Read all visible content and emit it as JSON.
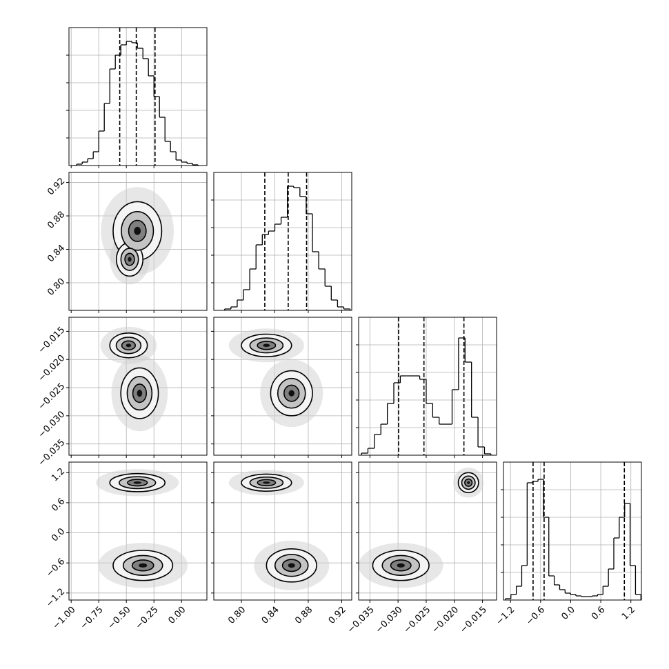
{
  "chart_data": {
    "type": "corner",
    "grid": true,
    "parameters": [
      {
        "xlim": [
          -1.02,
          0.23
        ],
        "xticks": [
          {
            "value": -1,
            "label": "−1.00"
          },
          {
            "value": -0.75,
            "label": "−0.75"
          },
          {
            "value": -0.5,
            "label": "−0.50"
          },
          {
            "value": -0.25,
            "label": "−0.25"
          },
          {
            "value": 0,
            "label": "0.00"
          }
        ],
        "hist": {
          "bins": [
            -1.0,
            -0.95,
            -0.9,
            -0.85,
            -0.8,
            -0.75,
            -0.7,
            -0.65,
            -0.6,
            -0.55,
            -0.5,
            -0.45,
            -0.4,
            -0.35,
            -0.3,
            -0.25,
            -0.2,
            -0.15,
            -0.1,
            -0.05,
            0.0,
            0.05,
            0.1,
            0.15
          ],
          "counts": [
            0,
            10,
            25,
            50,
            100,
            250,
            450,
            700,
            800,
            875,
            900,
            890,
            850,
            775,
            650,
            500,
            350,
            175,
            100,
            40,
            25,
            15,
            5
          ],
          "ylim": [
            0,
            1000
          ],
          "yticks": [
            200,
            400,
            600,
            800
          ]
        },
        "quantiles": [
          -0.56,
          -0.41,
          -0.24
        ]
      },
      {
        "xlim": [
          0.767,
          0.932
        ],
        "xticks": [
          {
            "value": 0.8,
            "label": "0.80"
          },
          0.84,
          0.88,
          0.92
        ],
        "hist": {
          "bins": [
            0.78,
            0.7875,
            0.795,
            0.8025,
            0.81,
            0.8175,
            0.825,
            0.8325,
            0.84,
            0.8475,
            0.855,
            0.8625,
            0.87,
            0.8775,
            0.885,
            0.8925,
            0.9,
            0.9075,
            0.915,
            0.9225,
            0.93
          ],
          "counts": [
            10,
            25,
            75,
            150,
            300,
            475,
            550,
            575,
            625,
            675,
            900,
            890,
            825,
            700,
            425,
            300,
            175,
            75,
            25,
            10
          ],
          "ylim": [
            0,
            1000
          ],
          "yticks": [
            200,
            400,
            600,
            800
          ]
        },
        "quantiles": [
          0.828,
          0.856,
          0.878
        ]
      },
      {
        "xlim": [
          -0.037,
          -0.0125
        ],
        "xticks": [
          {
            "value": -0.035,
            "label": "−0.035"
          },
          {
            "value": -0.03,
            "label": "−0.030"
          },
          {
            "value": -0.025,
            "label": "−0.025"
          },
          {
            "value": -0.02,
            "label": "−0.020"
          },
          {
            "value": -0.015,
            "label": "−0.015"
          }
        ],
        "hist": {
          "bins": [
            -0.0365,
            -0.03535,
            -0.0342,
            -0.03305,
            -0.0319,
            -0.03075,
            -0.0296,
            -0.02845,
            -0.0273,
            -0.02615,
            -0.025,
            -0.02385,
            -0.0227,
            -0.02155,
            -0.0204,
            -0.01925,
            -0.0181,
            -0.01695,
            -0.0158,
            -0.01465,
            -0.0135
          ],
          "counts": [
            15,
            50,
            150,
            225,
            375,
            525,
            575,
            575,
            575,
            550,
            375,
            275,
            225,
            225,
            475,
            850,
            675,
            275,
            60,
            10
          ],
          "ylim": [
            0,
            1000
          ],
          "yticks": [
            200,
            400,
            600,
            800
          ]
        },
        "quantiles": [
          -0.0299,
          -0.0254,
          -0.0183
        ]
      },
      {
        "xlim": [
          -1.34,
          1.41
        ],
        "xticks": [
          {
            "value": -1.2,
            "label": "−1.2"
          },
          {
            "value": -0.6,
            "label": "−0.6"
          },
          {
            "value": 0,
            "label": "0.0"
          },
          0.6,
          1.2
        ],
        "hist": {
          "bins": [
            -1.3,
            -1.192,
            -1.084,
            -0.976,
            -0.868,
            -0.76,
            -0.652,
            -0.544,
            -0.436,
            -0.328,
            -0.22,
            -0.112,
            -0.004,
            0.104,
            0.212,
            0.32,
            0.428,
            0.536,
            0.644,
            0.752,
            0.86,
            0.968,
            1.076,
            1.184,
            1.292,
            1.4
          ],
          "counts": [
            10,
            40,
            100,
            250,
            850,
            860,
            875,
            600,
            175,
            110,
            75,
            50,
            40,
            30,
            25,
            25,
            30,
            40,
            100,
            225,
            450,
            600,
            700,
            250,
            40
          ],
          "ylim": [
            0,
            1000
          ],
          "yticks": [
            200,
            400,
            600,
            800
          ]
        },
        "quantiles": [
          -0.75,
          -0.53,
          1.07
        ]
      }
    ],
    "pairs": [
      {
        "x": 0,
        "y": 1,
        "blobs": [
          [
            -0.4,
            0.862,
            0.22,
            0.035
          ],
          [
            -0.47,
            0.828,
            0.12,
            0.02
          ]
        ]
      },
      {
        "x": 0,
        "y": 2,
        "blobs": [
          [
            -0.48,
            -0.0175,
            0.17,
            0.0022
          ],
          [
            -0.38,
            -0.026,
            0.17,
            0.0045
          ]
        ]
      },
      {
        "x": 1,
        "y": 2,
        "blobs": [
          [
            0.83,
            -0.0175,
            0.03,
            0.002
          ],
          [
            0.86,
            -0.026,
            0.025,
            0.004
          ]
        ]
      },
      {
        "x": 0,
        "y": 3,
        "blobs": [
          [
            -0.4,
            1.0,
            0.25,
            0.18
          ],
          [
            -0.35,
            -0.65,
            0.27,
            0.3
          ]
        ]
      },
      {
        "x": 1,
        "y": 3,
        "blobs": [
          [
            0.83,
            1.0,
            0.03,
            0.17
          ],
          [
            0.86,
            -0.65,
            0.03,
            0.33
          ]
        ]
      },
      {
        "x": 2,
        "y": 3,
        "blobs": [
          [
            -0.0175,
            1.0,
            0.0018,
            0.2
          ],
          [
            -0.0295,
            -0.65,
            0.005,
            0.3
          ]
        ]
      }
    ]
  }
}
